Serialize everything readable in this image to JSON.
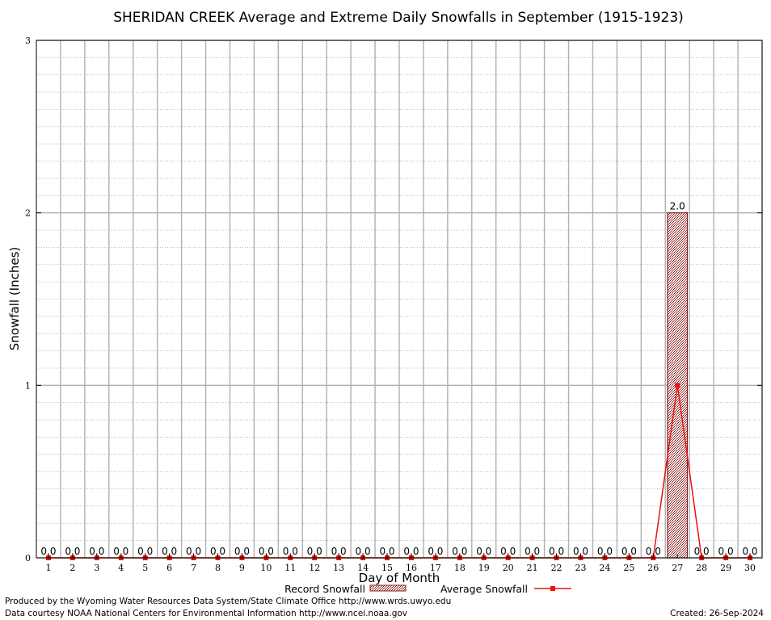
{
  "chart_data": {
    "type": "bar",
    "title": "SHERIDAN CREEK Average and Extreme Daily Snowfalls in September (1915-1923)",
    "xlabel": "Day of Month",
    "ylabel": "Snowfall (Inches)",
    "categories": [
      "1",
      "2",
      "3",
      "4",
      "5",
      "6",
      "7",
      "8",
      "9",
      "10",
      "11",
      "12",
      "13",
      "14",
      "15",
      "16",
      "17",
      "18",
      "19",
      "20",
      "21",
      "22",
      "23",
      "24",
      "25",
      "26",
      "27",
      "28",
      "29",
      "30"
    ],
    "yticks": [
      "0",
      "1",
      "2",
      "3"
    ],
    "ylim": [
      0,
      3
    ],
    "grid": true,
    "legend_placement": "bottom",
    "series": [
      {
        "name": "Record Snowfall",
        "type": "bar",
        "color": "#8b1a1a",
        "values": [
          0,
          0,
          0,
          0,
          0,
          0,
          0,
          0,
          0,
          0,
          0,
          0,
          0,
          0,
          0,
          0,
          0,
          0,
          0,
          0,
          0,
          0,
          0,
          0,
          0,
          0,
          2.0,
          0,
          0,
          0
        ],
        "labels": [
          "0.0",
          "0.0",
          "0.0",
          "0.0",
          "0.0",
          "0.0",
          "0.0",
          "0.0",
          "0.0",
          "0.0",
          "0.0",
          "0.0",
          "0.0",
          "0.0",
          "0.0",
          "0.0",
          "0.0",
          "0.0",
          "0.0",
          "0.0",
          "0.0",
          "0.0",
          "0.0",
          "0.0",
          "0.0",
          "0.0",
          "2.0",
          "0.0",
          "0.0",
          "0.0"
        ]
      },
      {
        "name": "Average Snowfall",
        "type": "line",
        "color": "#ee1111",
        "values": [
          0,
          0,
          0,
          0,
          0,
          0,
          0,
          0,
          0,
          0,
          0,
          0,
          0,
          0,
          0,
          0,
          0,
          0,
          0,
          0,
          0,
          0,
          0,
          0,
          0,
          0,
          1.0,
          0,
          0,
          0
        ]
      }
    ]
  },
  "footer": {
    "produced_by": "Produced by the Wyoming Water Resources Data System/State Climate Office http://www.wrds.uwyo.edu",
    "data_courtesy": "Data courtesy NOAA National Centers for Environmental Information http://www.ncei.noaa.gov",
    "created": "Created:  26-Sep-2024"
  }
}
